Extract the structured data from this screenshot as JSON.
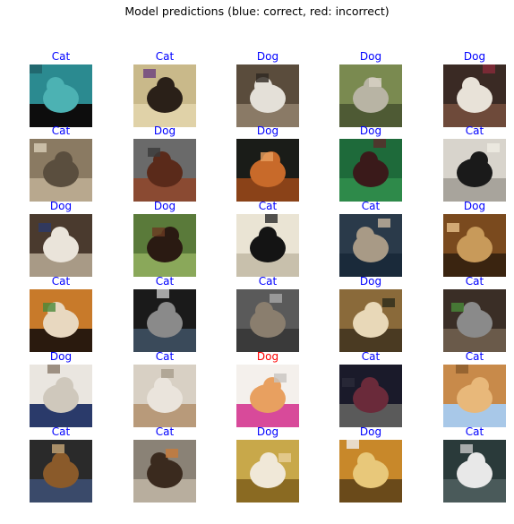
{
  "title": "Model predictions (blue: correct, red: incorrect)",
  "colors": {
    "correct": "#0000ff",
    "incorrect": "#ff0000"
  },
  "predictions": [
    {
      "label": "Cat",
      "correct": true,
      "palette": [
        "#2b8a90",
        "#4cb2b3",
        "#0d0d0d",
        "#1f5f66"
      ]
    },
    {
      "label": "Cat",
      "correct": true,
      "palette": [
        "#c9b98a",
        "#2a2018",
        "#e0d2a8",
        "#6a3f7e"
      ]
    },
    {
      "label": "Dog",
      "correct": true,
      "palette": [
        "#5a4c3c",
        "#e4e0d8",
        "#8a7a66",
        "#2e2822"
      ]
    },
    {
      "label": "Dog",
      "correct": true,
      "palette": [
        "#7a8a50",
        "#b8b4a4",
        "#4e5a34",
        "#d8d2c4"
      ]
    },
    {
      "label": "Dog",
      "correct": true,
      "palette": [
        "#3a2a24",
        "#e8e2d8",
        "#6e4a3a",
        "#8a2a3a"
      ]
    },
    {
      "label": "Cat",
      "correct": true,
      "palette": [
        "#8a7a62",
        "#5a4e3e",
        "#b8a88e",
        "#d8ceb8"
      ]
    },
    {
      "label": "Dog",
      "correct": true,
      "palette": [
        "#6a6a6a",
        "#5a2a1a",
        "#8a4a32",
        "#3a3a3a"
      ]
    },
    {
      "label": "Dog",
      "correct": true,
      "palette": [
        "#1a1c18",
        "#c86a2a",
        "#8a4218",
        "#e8a060"
      ]
    },
    {
      "label": "Dog",
      "correct": true,
      "palette": [
        "#1e6a3a",
        "#3a1a1a",
        "#2e8a4a",
        "#5a2a2a"
      ]
    },
    {
      "label": "Cat",
      "correct": true,
      "palette": [
        "#d8d4cc",
        "#1a1a1a",
        "#a8a49c",
        "#f0ece4"
      ]
    },
    {
      "label": "Dog",
      "correct": true,
      "palette": [
        "#4a3a2e",
        "#eae4da",
        "#a89a86",
        "#2a3a6a"
      ]
    },
    {
      "label": "Dog",
      "correct": true,
      "palette": [
        "#5a7a3a",
        "#2a1a12",
        "#8aa85a",
        "#6a3a22"
      ]
    },
    {
      "label": "Cat",
      "correct": true,
      "palette": [
        "#eae4d4",
        "#141414",
        "#c8c0ac",
        "#2a2a2a"
      ]
    },
    {
      "label": "Cat",
      "correct": true,
      "palette": [
        "#2a3a4a",
        "#a89a86",
        "#1a2a3a",
        "#c8b8a0"
      ]
    },
    {
      "label": "Dog",
      "correct": true,
      "palette": [
        "#7a4a1e",
        "#c89a5a",
        "#3a2410",
        "#e8c08a"
      ]
    },
    {
      "label": "Cat",
      "correct": true,
      "palette": [
        "#c87a2a",
        "#e8d8c0",
        "#2a1a0e",
        "#4a8a3a"
      ]
    },
    {
      "label": "Cat",
      "correct": true,
      "palette": [
        "#1a1a1a",
        "#8a8a8a",
        "#3a4a5a",
        "#c8c8c8"
      ]
    },
    {
      "label": "Cat",
      "correct": true,
      "palette": [
        "#5a5a5a",
        "#8a7e6e",
        "#3a3a3a",
        "#a8a8a8"
      ]
    },
    {
      "label": "Dog",
      "correct": true,
      "palette": [
        "#8a6a3a",
        "#e8d8b8",
        "#4a3a22",
        "#2a2a1a"
      ]
    },
    {
      "label": "Cat",
      "correct": true,
      "palette": [
        "#3a2e26",
        "#8a8a8a",
        "#6a5a4a",
        "#4a8a3a"
      ]
    },
    {
      "label": "Dog",
      "correct": true,
      "palette": [
        "#eae6e0",
        "#cfc8bc",
        "#2a3a6a",
        "#8a7a6a"
      ]
    },
    {
      "label": "Cat",
      "correct": true,
      "palette": [
        "#d8d0c4",
        "#eae4dc",
        "#b89a7a",
        "#a89c8c"
      ]
    },
    {
      "label": "Dog",
      "correct": false,
      "palette": [
        "#f4f0ec",
        "#e8a060",
        "#d84a9a",
        "#c8c4c0"
      ]
    },
    {
      "label": "Cat",
      "correct": true,
      "palette": [
        "#1a1a2a",
        "#6a2a3a",
        "#5a5a5a",
        "#2a2a3a"
      ]
    },
    {
      "label": "Cat",
      "correct": true,
      "palette": [
        "#c88a4a",
        "#e8b87a",
        "#a8c8e8",
        "#8a5a2a"
      ]
    },
    {
      "label": "Cat",
      "correct": true,
      "palette": [
        "#2a2a2a",
        "#8a5a2a",
        "#3a4a6a",
        "#c8a878"
      ]
    },
    {
      "label": "Cat",
      "correct": true,
      "palette": [
        "#8a8276",
        "#3a2a1e",
        "#b8ae9e",
        "#c87a3a"
      ]
    },
    {
      "label": "Dog",
      "correct": true,
      "palette": [
        "#c8a84a",
        "#f0e8d8",
        "#8a6a22",
        "#e8d09a"
      ]
    },
    {
      "label": "Dog",
      "correct": true,
      "palette": [
        "#c8882a",
        "#e8c87a",
        "#6a4a1a",
        "#f0f0f0"
      ]
    },
    {
      "label": "Cat",
      "correct": true,
      "palette": [
        "#2a3a3a",
        "#e8e8e8",
        "#4a5a5a",
        "#c8c8c8"
      ]
    }
  ]
}
